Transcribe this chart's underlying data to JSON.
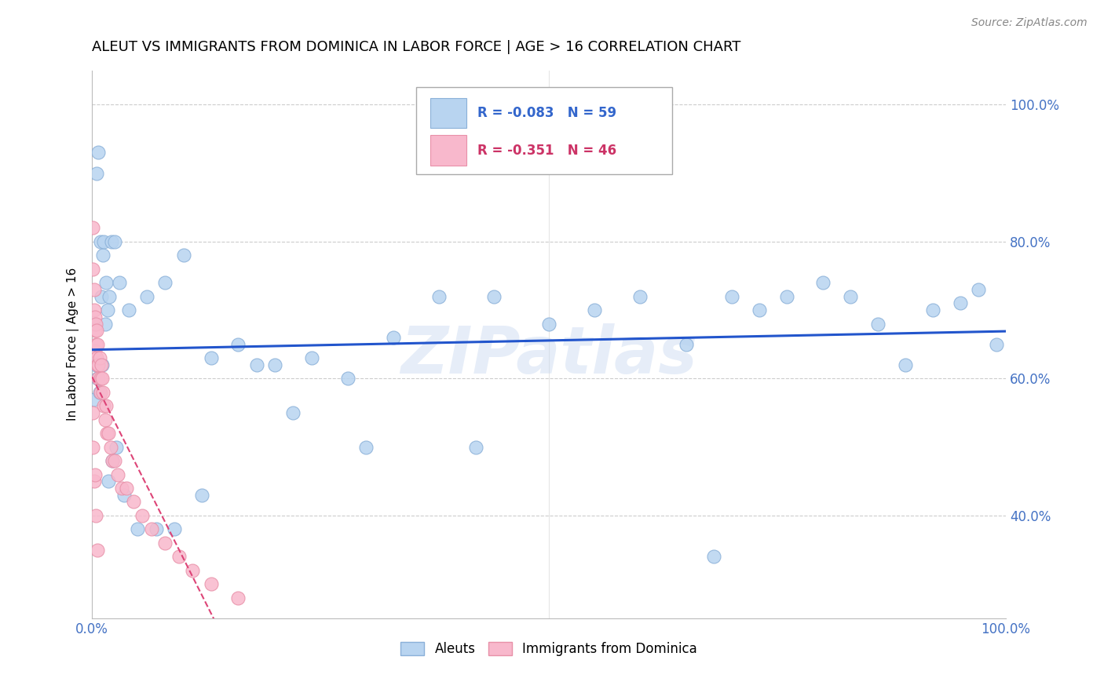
{
  "title": "ALEUT VS IMMIGRANTS FROM DOMINICA IN LABOR FORCE | AGE > 16 CORRELATION CHART",
  "source": "Source: ZipAtlas.com",
  "ylabel": "In Labor Force | Age > 16",
  "legend_entries": [
    {
      "label": "R = -0.083   N = 59",
      "color_box": "#a8c8e8",
      "color_text": "#3366cc"
    },
    {
      "label": "R = -0.351   N = 46",
      "color_box": "#f4a8b8",
      "color_text": "#cc3366"
    }
  ],
  "legend_bottom": [
    "Aleuts",
    "Immigrants from Dominica"
  ],
  "aleuts_x": [
    0.003,
    0.005,
    0.007,
    0.009,
    0.01,
    0.012,
    0.013,
    0.015,
    0.017,
    0.019,
    0.021,
    0.025,
    0.03,
    0.04,
    0.06,
    0.08,
    0.1,
    0.13,
    0.16,
    0.2,
    0.24,
    0.28,
    0.33,
    0.38,
    0.44,
    0.5,
    0.55,
    0.6,
    0.65,
    0.7,
    0.73,
    0.76,
    0.8,
    0.83,
    0.86,
    0.89,
    0.92,
    0.95,
    0.97,
    0.99,
    0.002,
    0.004,
    0.006,
    0.008,
    0.011,
    0.014,
    0.018,
    0.022,
    0.026,
    0.035,
    0.05,
    0.07,
    0.09,
    0.12,
    0.18,
    0.22,
    0.3,
    0.42,
    0.68
  ],
  "aleuts_y": [
    0.68,
    0.9,
    0.93,
    0.8,
    0.72,
    0.78,
    0.8,
    0.74,
    0.7,
    0.72,
    0.8,
    0.8,
    0.74,
    0.7,
    0.72,
    0.74,
    0.78,
    0.63,
    0.65,
    0.62,
    0.63,
    0.6,
    0.66,
    0.72,
    0.72,
    0.68,
    0.7,
    0.72,
    0.65,
    0.72,
    0.7,
    0.72,
    0.74,
    0.72,
    0.68,
    0.62,
    0.7,
    0.71,
    0.73,
    0.65,
    0.57,
    0.62,
    0.6,
    0.58,
    0.62,
    0.68,
    0.45,
    0.48,
    0.5,
    0.43,
    0.38,
    0.38,
    0.38,
    0.43,
    0.62,
    0.55,
    0.5,
    0.5,
    0.34
  ],
  "dominica_x": [
    0.001,
    0.001,
    0.002,
    0.002,
    0.003,
    0.003,
    0.003,
    0.004,
    0.004,
    0.005,
    0.005,
    0.006,
    0.006,
    0.007,
    0.007,
    0.008,
    0.009,
    0.009,
    0.01,
    0.011,
    0.012,
    0.013,
    0.014,
    0.015,
    0.016,
    0.018,
    0.02,
    0.022,
    0.025,
    0.028,
    0.032,
    0.038,
    0.045,
    0.055,
    0.065,
    0.08,
    0.095,
    0.11,
    0.13,
    0.16,
    0.001,
    0.001,
    0.002,
    0.003,
    0.004,
    0.006
  ],
  "dominica_y": [
    0.82,
    0.76,
    0.73,
    0.7,
    0.69,
    0.67,
    0.64,
    0.68,
    0.65,
    0.67,
    0.63,
    0.65,
    0.62,
    0.62,
    0.6,
    0.63,
    0.6,
    0.58,
    0.62,
    0.6,
    0.58,
    0.56,
    0.54,
    0.56,
    0.52,
    0.52,
    0.5,
    0.48,
    0.48,
    0.46,
    0.44,
    0.44,
    0.42,
    0.4,
    0.38,
    0.36,
    0.34,
    0.32,
    0.3,
    0.28,
    0.55,
    0.5,
    0.45,
    0.46,
    0.4,
    0.35
  ],
  "axis_color": "#4472c4",
  "grid_color": "#cccccc",
  "aleut_dot_color": "#b8d4f0",
  "aleut_dot_edge": "#8ab0d8",
  "dominica_dot_color": "#f8b8cc",
  "dominica_dot_edge": "#e890a8",
  "aleut_line_color": "#2255cc",
  "dominica_line_color": "#dd4477",
  "watermark": "ZIPatlas",
  "xlim": [
    0.0,
    1.0
  ],
  "ylim": [
    0.25,
    1.05
  ],
  "yticks": [
    0.4,
    0.6,
    0.8,
    1.0
  ],
  "ytick_labels": [
    "40.0%",
    "60.0%",
    "80.0%",
    "100.0%"
  ],
  "xticks": [
    0.0,
    1.0
  ],
  "xtick_labels": [
    "0.0%",
    "100.0%"
  ]
}
